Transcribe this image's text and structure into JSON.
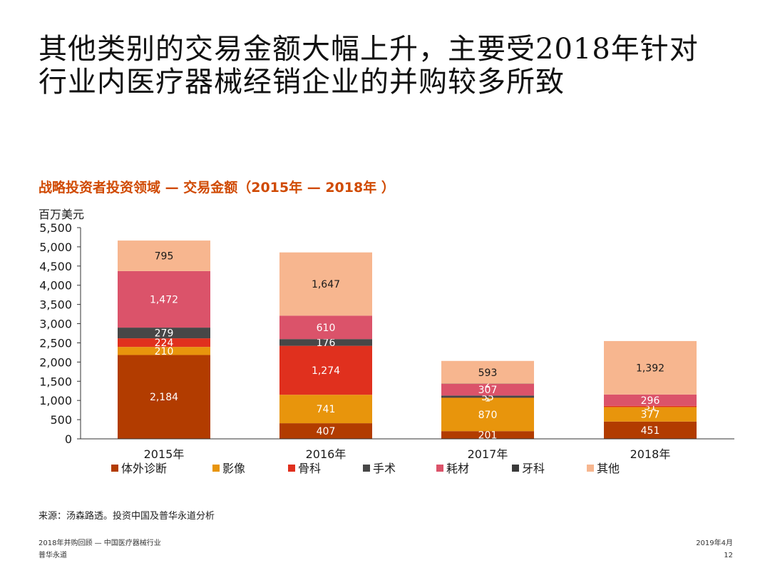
{
  "headline": {
    "line1": "其他类别的交易金额大幅上升，主要受2018年针对",
    "line2": "行业内医疗器械经销企业的并购较多所致"
  },
  "chart_title": "战略投资者投资领域 — 交易金额（2015年 — 2018年 ）",
  "unit_label": "百万美元",
  "chart_data": {
    "type": "bar",
    "stacked": true,
    "title": "战略投资者投资领域 — 交易金额（2015年 — 2018年 ）",
    "ylabel": "百万美元",
    "ylim": [
      0,
      5500
    ],
    "yticks": [
      "0",
      "500",
      "1,000",
      "1,500",
      "2,000",
      "2,500",
      "3,000",
      "3,500",
      "4,000",
      "4,500",
      "5,000",
      "5,500"
    ],
    "categories": [
      "2015年",
      "2016年",
      "2017年",
      "2018年"
    ],
    "grid": false,
    "legend": "bottom",
    "series": [
      {
        "name": "体外诊断",
        "color": "#b23c00",
        "values": [
          2184,
          407,
          201,
          451
        ],
        "labels": [
          "2,184",
          "407",
          "201",
          "451"
        ],
        "label_color": "#ffffff"
      },
      {
        "name": "影像",
        "color": "#e8950c",
        "values": [
          210,
          741,
          870,
          377
        ],
        "labels": [
          "210",
          "741",
          "870",
          "377"
        ],
        "label_color": "#ffffff"
      },
      {
        "name": "骨科",
        "color": "#e0301e",
        "values": [
          224,
          1274,
          1,
          31
        ],
        "labels": [
          "224",
          "1,274",
          "1",
          "31"
        ],
        "label_color": "#ffffff"
      },
      {
        "name": "手术",
        "color": "#474747",
        "values": [
          279,
          176,
          55,
          0
        ],
        "labels": [
          "279",
          "176",
          "55",
          ""
        ],
        "label_color": "#ffffff"
      },
      {
        "name": "耗材",
        "color": "#db536a",
        "values": [
          1472,
          610,
          307,
          296
        ],
        "labels": [
          "1,472",
          "610",
          "307",
          "296"
        ],
        "label_color": "#ffffff"
      },
      {
        "name": "牙科",
        "color": "#3a3a3a",
        "values": [
          0,
          0,
          2,
          0
        ],
        "labels": [
          "",
          "",
          "2",
          ""
        ],
        "label_color": "#ffffff"
      },
      {
        "name": "其他",
        "color": "#f7b68f",
        "values": [
          795,
          1647,
          593,
          1392
        ],
        "labels": [
          "795",
          "1,647",
          "593",
          "1,392"
        ],
        "label_color": "#1a1a1a"
      }
    ]
  },
  "source": "来源：汤森路透。投资中国及普华永道分析",
  "footer": {
    "left_line1": "2018年并购回顾 — 中国医疗器械行业",
    "left_line2": "普华永道",
    "date": "2019年4月",
    "page": "12"
  }
}
